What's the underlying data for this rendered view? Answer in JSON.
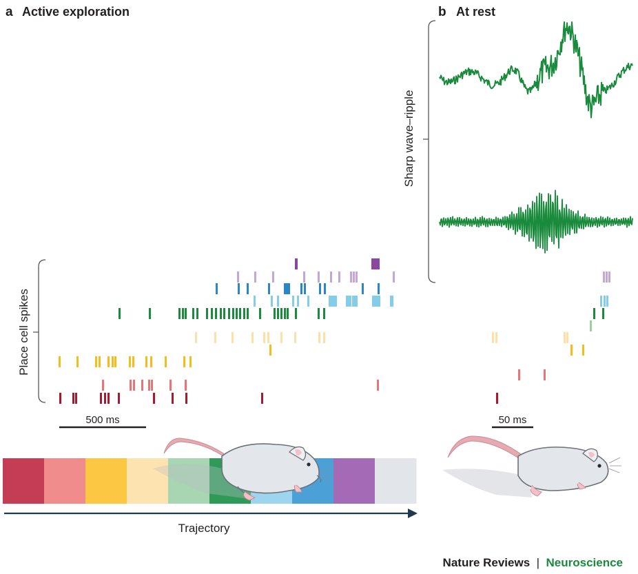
{
  "panels": {
    "a": {
      "letter": "a",
      "title": "Active exploration"
    },
    "b": {
      "letter": "b",
      "title": "At rest"
    }
  },
  "labels": {
    "place_cell_spikes": "Place cell spikes",
    "sharp_wave_ripple": "Sharp wave–ripple",
    "trajectory": "Trajectory"
  },
  "scale_bars": {
    "exploration": "500 ms",
    "rest": "50 ms"
  },
  "footer": {
    "journal": "Nature Reviews",
    "separator": "|",
    "field": "Neuroscience"
  },
  "colors": {
    "dark_red": "#a8182f",
    "red_pink": "#e87474",
    "yellow": "#f5bd1c",
    "pale_yellow": "#fde0a6",
    "pale_green": "#9bcfa5",
    "green": "#1a8a3c",
    "light_blue": "#84cdea",
    "blue": "#2a86c6",
    "lavender": "#c3a7d7",
    "purple": "#8a479e",
    "trace_green": "#1a8a3c",
    "text": "#231f20",
    "brand_green": "#1a8a3c"
  },
  "trajectory_segments": [
    {
      "name": "segment-1",
      "color": "#c43d55"
    },
    {
      "name": "segment-2",
      "color": "#f08c8c"
    },
    {
      "name": "segment-3",
      "color": "#fcc844"
    },
    {
      "name": "segment-4",
      "color": "#fde3b0"
    },
    {
      "name": "segment-5",
      "color": "#a8d5b2"
    },
    {
      "name": "segment-6",
      "color": "#2f9a58"
    },
    {
      "name": "segment-7",
      "color": "#9dd5ef"
    },
    {
      "name": "segment-8",
      "color": "#4aa0d7"
    },
    {
      "name": "segment-9",
      "color": "#a56ab6"
    },
    {
      "name": "segment-10",
      "color": "#e2e5e9"
    }
  ]
}
